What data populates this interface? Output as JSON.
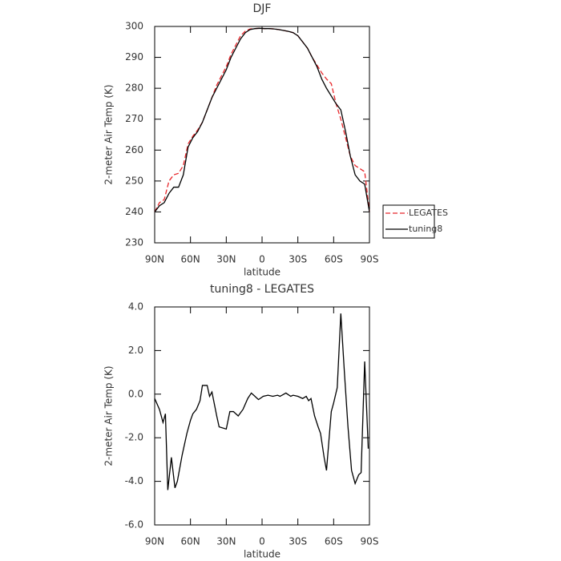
{
  "chart_data": [
    {
      "type": "line",
      "title": "DJF",
      "xlabel": "latitude",
      "ylabel": "2-meter Air Temp (K)",
      "x": [
        90,
        86,
        82,
        78,
        74,
        70,
        66,
        62,
        58,
        54,
        50,
        46,
        42,
        38,
        34,
        30,
        26,
        22,
        18,
        14,
        10,
        6,
        2,
        -2,
        -6,
        -10,
        -14,
        -18,
        -22,
        -26,
        -30,
        -34,
        -38,
        -42,
        -46,
        -50,
        -54,
        -58,
        -62,
        -66,
        -70,
        -74,
        -78,
        -82,
        -86,
        -90
      ],
      "series": [
        {
          "name": "LEGATES",
          "color": "#e8262a",
          "dashed": true,
          "values": [
            240,
            243,
            244,
            250,
            252,
            252.5,
            255,
            262,
            264.5,
            266.5,
            269,
            273,
            277,
            281,
            284,
            287,
            291,
            294,
            297,
            298.5,
            299.2,
            299.3,
            299.4,
            299.3,
            299.3,
            299.2,
            299,
            298.7,
            298.4,
            298,
            297,
            295,
            293,
            290,
            287.5,
            285,
            283,
            281.5,
            275,
            270,
            264,
            258,
            255,
            254,
            253,
            240
          ]
        },
        {
          "name": "tuning8",
          "color": "#000000",
          "dashed": false,
          "values": [
            240,
            242,
            243,
            246,
            248,
            248,
            252,
            261,
            264,
            266,
            269,
            273,
            277,
            280,
            283,
            286,
            290,
            293,
            296,
            298,
            299,
            299.3,
            299.4,
            299.3,
            299.3,
            299.2,
            299,
            298.7,
            298.4,
            298,
            297,
            295,
            293,
            290,
            287,
            283,
            280,
            277.5,
            275,
            273,
            266,
            258,
            252,
            250,
            249,
            240
          ]
        }
      ],
      "xlim": [
        90,
        -90
      ],
      "xticks": [
        {
          "value": 90,
          "label": "90N"
        },
        {
          "value": 60,
          "label": "60N"
        },
        {
          "value": 30,
          "label": "30N"
        },
        0,
        {
          "value": -30,
          "label": "30S"
        },
        {
          "value": -60,
          "label": "60S"
        },
        {
          "value": -90,
          "label": "90S"
        }
      ],
      "ylim": [
        230,
        300
      ],
      "yticks": [
        230,
        240,
        250,
        260,
        270,
        280,
        290,
        300
      ],
      "legend": "right"
    },
    {
      "type": "line",
      "title": "tuning8 - LEGATES",
      "xlabel": "latitude",
      "ylabel": "2-meter Air Temp (K)",
      "x": [
        90,
        86,
        83,
        81,
        79,
        76,
        73,
        71,
        67,
        63,
        60,
        58,
        55,
        52,
        50,
        46,
        44,
        42,
        38,
        36,
        30,
        27,
        24,
        20,
        16,
        12,
        9,
        7,
        3,
        -1,
        -5,
        -9,
        -13,
        -15,
        -20,
        -24,
        -26,
        -30,
        -34,
        -37,
        -39,
        -41,
        -44,
        -47,
        -49,
        -52,
        -54,
        -58,
        -60,
        -63,
        -66,
        -69,
        -72,
        -75,
        -78,
        -81,
        -83,
        -86,
        -89
      ],
      "values": [
        -0.2,
        -0.7,
        -1.3,
        -0.9,
        -4.4,
        -2.9,
        -4.3,
        -4.0,
        -2.8,
        -1.8,
        -1.2,
        -0.9,
        -0.7,
        -0.3,
        0.4,
        0.4,
        -0.1,
        0.1,
        -1.0,
        -1.5,
        -1.6,
        -0.8,
        -0.8,
        -1.0,
        -0.7,
        -0.2,
        0.05,
        -0.05,
        -0.25,
        -0.1,
        -0.05,
        -0.1,
        -0.05,
        -0.1,
        0.05,
        -0.1,
        -0.05,
        -0.1,
        -0.2,
        -0.1,
        -0.3,
        -0.2,
        -1.0,
        -1.5,
        -1.8,
        -2.9,
        -3.5,
        -0.8,
        -0.4,
        0.3,
        3.7,
        1.0,
        -1.5,
        -3.5,
        -4.1,
        -3.7,
        -3.6,
        1.5,
        -2.5
      ],
      "color": "#000000",
      "xlim": [
        90,
        -90
      ],
      "xticks": [
        {
          "value": 90,
          "label": "90N"
        },
        {
          "value": 60,
          "label": "60N"
        },
        {
          "value": 30,
          "label": "30N"
        },
        0,
        {
          "value": -30,
          "label": "30S"
        },
        {
          "value": -60,
          "label": "60S"
        },
        {
          "value": -90,
          "label": "90S"
        }
      ],
      "ylim": [
        -6,
        4
      ],
      "yticks": [
        {
          "value": -6,
          "label": "-6.0"
        },
        {
          "value": -4,
          "label": "-4.0"
        },
        {
          "value": -2,
          "label": "-2.0"
        },
        {
          "value": 0,
          "label": "0.0"
        },
        {
          "value": 2,
          "label": "2.0"
        },
        {
          "value": 4,
          "label": "4.0"
        }
      ]
    }
  ]
}
